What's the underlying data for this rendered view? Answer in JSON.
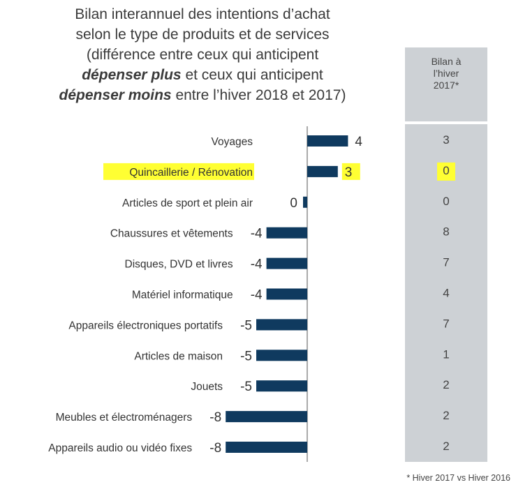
{
  "title": {
    "line1": "Bilan interannuel des intentions d’achat",
    "line2": "selon le type de produits et de services",
    "line3": "(différence entre ceux qui anticipent",
    "line4_em": "dépenser plus",
    "line4_rest": " et ceux qui anticipent",
    "line5_em": "dépenser moins",
    "line5_rest": " entre l’hiver 2018 et 2017)"
  },
  "side_panel": {
    "header_line1": "Bilan à",
    "header_line2": "l’hiver",
    "header_line3": "2017*"
  },
  "footnote": "* Hiver 2017 vs Hiver 2016",
  "colors": {
    "bar": "#0f3a5f",
    "highlight": "#ffff33",
    "panel": "#cdd1d5"
  },
  "chart_data": {
    "type": "bar",
    "orientation": "horizontal",
    "categories": [
      "Voyages",
      "Quincaillerie / Rénovation",
      "Articles de sport et plein air",
      "Chaussures et vêtements",
      "Disques, DVD et livres",
      "Matériel informatique",
      "Appareils électroniques portatifs",
      "Articles de maison",
      "Jouets",
      "Meubles et électroménagers",
      "Appareils audio ou vidéo fixes"
    ],
    "values": [
      4,
      3,
      0,
      -4,
      -4,
      -4,
      -5,
      -5,
      -5,
      -8,
      -8
    ],
    "value_labels": [
      "4",
      "3",
      "0",
      "-4",
      "-4",
      "-4",
      "-5",
      "-5",
      "-5",
      "-8",
      "-8"
    ],
    "winter_2017_balance": [
      3,
      0,
      0,
      8,
      7,
      4,
      7,
      1,
      2,
      2,
      2
    ],
    "highlighted_category": "Quincaillerie / Rénovation",
    "xlim": [
      -8,
      4
    ],
    "grid": false,
    "legend": "none"
  }
}
